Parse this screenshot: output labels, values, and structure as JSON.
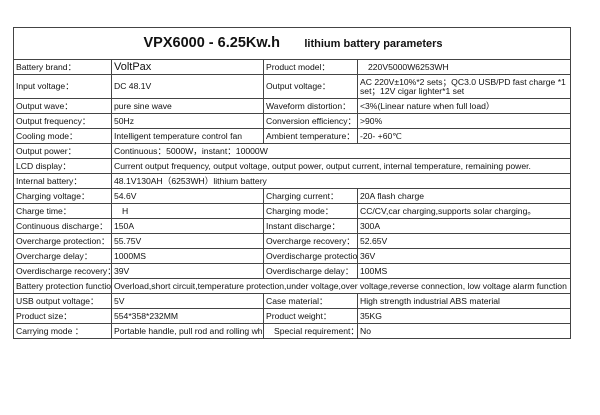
{
  "title": {
    "main": "VPX6000 - 6.25Kw.h",
    "sub": "lithium battery parameters"
  },
  "rows": [
    {
      "l1": "Battery brand：",
      "v1": "VoltPax",
      "l2": "Product model：",
      "v2": "220V5000W6253WH"
    },
    {
      "l1": "Input voltage：",
      "v1": "DC 48.1V",
      "l2": "Output voltage：",
      "v2": "AC 220V±10%*2 sets；QC3.0 USB/PD fast charge *1 set；12V cigar lighter*1 set"
    },
    {
      "l1": "Output wave：",
      "v1": "pure sine wave",
      "l2": "Waveform distortion：",
      "v2": "<3%(Linear nature when full load）"
    },
    {
      "l1": "Output frequency：",
      "v1": "50Hz",
      "l2": "Conversion efficiency：",
      "v2": ">90%"
    },
    {
      "l1": "Cooling mode：",
      "v1": "Intelligent temperature control fan",
      "l2": "Ambient temperature：",
      "v2": "-20- +60℃"
    },
    {
      "l1": "Output power：",
      "v1": "Continuous：5000W，instant：10000W"
    },
    {
      "l1": "LCD display：",
      "v1": "Current output frequency, output voltage, output power, output current, internal temperature, remaining power."
    },
    {
      "l1": "Internal battery：",
      "v1": "48.1V130AH（6253WH）lithium battery"
    },
    {
      "l1": "Charging voltage：",
      "v1": "54.6V",
      "l2": "Charging current：",
      "v2": "20A flash charge"
    },
    {
      "l1": "Charge time：",
      "v1": "H",
      "l2": "Charging mode：",
      "v2": "CC/CV,car charging,supports solar charging。"
    },
    {
      "l1": "Continuous discharge：",
      "v1": "150A",
      "l2": "Instant discharge：",
      "v2": "300A"
    },
    {
      "l1": "Overcharge protection：",
      "v1": "55.75V",
      "l2": "Overcharge recovery：",
      "v2": "52.65V"
    },
    {
      "l1": "Overcharge delay：",
      "v1": "1000MS",
      "l2": "Overdischarge protection：",
      "v2": "36V"
    },
    {
      "l1": "Overdischarge recovery：",
      "v1": "39V",
      "l2": "Overdischarge delay：",
      "v2": "100MS"
    },
    {
      "l1": "Battery protection function：",
      "v1": "Overload,short circuit,temperature protection,under voltage,over voltage,reverse connection, low voltage alarm function"
    },
    {
      "l1": "USB output voltage：",
      "v1": "5V",
      "l2": "Case material：",
      "v2": "High strength industrial ABS material"
    },
    {
      "l1": "Product size：",
      "v1": "554*358*232MM",
      "l2": "Product weight：",
      "v2": "35KG"
    },
    {
      "l1": "Carrying mode ：",
      "v1": "Portable handle, pull rod and rolling wheels.",
      "l2": "Special requirement：",
      "v2": "No"
    }
  ]
}
